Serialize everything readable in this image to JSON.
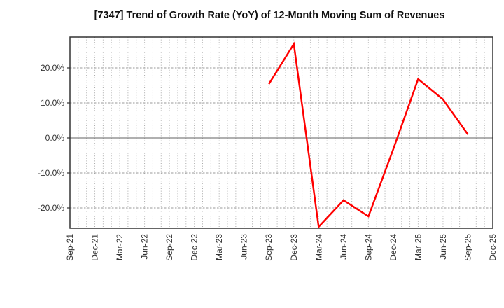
{
  "title": "[7347]  Trend of Growth Rate (YoY) of 12-Month Moving Sum of Revenues",
  "chart_data": {
    "type": "line",
    "title": "[7347]  Trend of Growth Rate (YoY) of 12-Month Moving Sum of Revenues",
    "x_tick_labels": [
      "Sep-21",
      "Dec-21",
      "Mar-22",
      "Jun-22",
      "Sep-22",
      "Dec-22",
      "Mar-23",
      "Jun-23",
      "Sep-23",
      "Dec-23",
      "Mar-24",
      "Jun-24",
      "Sep-24",
      "Dec-24",
      "Mar-25",
      "Jun-25",
      "Sep-25",
      "Dec-25"
    ],
    "months_total": 51,
    "months_per_tick": 3,
    "y_ticks": [
      {
        "value": 20,
        "label": "20.0%"
      },
      {
        "value": 10,
        "label": "10.0%"
      },
      {
        "value": 0,
        "label": "0.0%"
      },
      {
        "value": -10,
        "label": "-10.0%"
      },
      {
        "value": -20,
        "label": "-20.0%"
      }
    ],
    "ylim": [
      -25.8,
      28.8
    ],
    "grid": {
      "vertical": "monthly dotted",
      "horizontal": "dashed every 10%",
      "zero_line": "solid"
    },
    "legend": "none",
    "series": [
      {
        "name": "Growth Rate (YoY) of 12-Month Moving Sum of Revenues",
        "unit": "%",
        "start_quarter_index": 8,
        "x_labels": [
          "Sep-23",
          "Dec-23",
          "Mar-24",
          "Jun-24",
          "Sep-24",
          "Dec-24",
          "Mar-25",
          "Jun-25",
          "Sep-25"
        ],
        "values": [
          15.4,
          26.8,
          -25.4,
          -17.8,
          -22.4,
          -3.2,
          16.8,
          11.0,
          1.0
        ]
      }
    ],
    "colors": {
      "line": "#ff0000",
      "grid_dotted": "#aaaaaa",
      "grid_dashed": "#999999",
      "zero_line": "#808080",
      "frame": "#333333",
      "tick_label": "#333333",
      "title": "#111111",
      "background": "#ffffff"
    }
  }
}
